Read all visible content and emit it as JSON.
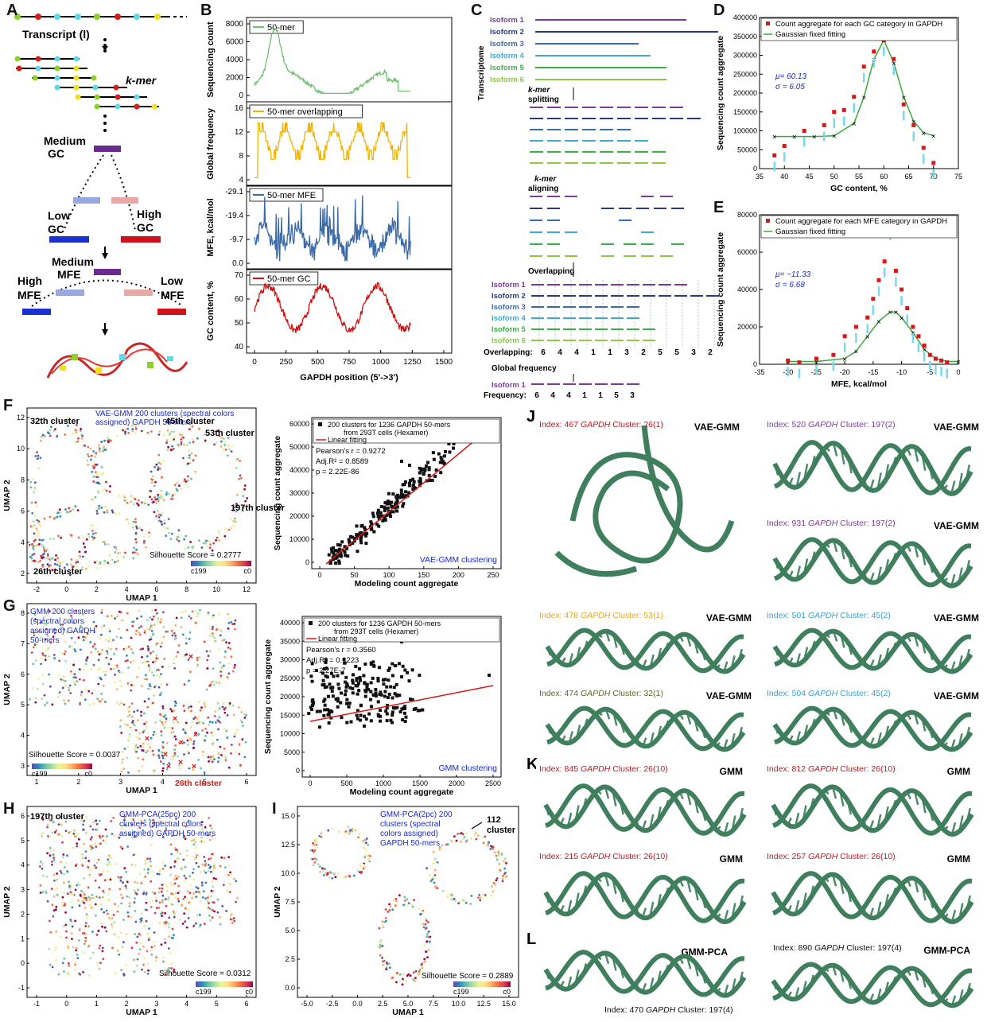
{
  "panels": {
    "A": {
      "letter": "A",
      "transcript": "Transcript (l)",
      "kmer": "k-mer",
      "medium_gc": "Medium GC",
      "low_gc": "Low GC",
      "high_gc": "High GC",
      "medium_mfe": "Medium MFE",
      "high_mfe": "High MFE",
      "low_mfe": "Low MFE"
    },
    "B": {
      "letter": "B",
      "xlabel": "GAPDH position (5'->3')",
      "xticks": [
        "0",
        "250",
        "500",
        "750",
        "1000",
        "1250",
        "1500"
      ],
      "subplots": [
        {
          "legend": "50-mer",
          "ylabel": "Sequencing count",
          "yticks": [
            "0",
            "2000",
            "4000",
            "6000",
            "8000"
          ],
          "color": "#6fbf6f"
        },
        {
          "legend": "50-mer overlapping",
          "ylabel": "Global frequency",
          "yticks": [
            "4",
            "8",
            "12",
            "16"
          ],
          "color": "#f0b400"
        },
        {
          "legend": "50-mer MFE",
          "ylabel": "MFE, kcal/mol",
          "yticks": [
            "0.0",
            "-9.7",
            "-19.4",
            "-29.1"
          ],
          "color": "#3b6aa8"
        },
        {
          "legend": "50-mer GC",
          "ylabel": "GC content, %",
          "yticks": [
            "40",
            "50",
            "60",
            "70"
          ],
          "color": "#d01010"
        }
      ]
    },
    "C": {
      "letter": "C",
      "transcriptome": "Transcriptome",
      "isoforms": [
        "Isoform 1",
        "Isoform 2",
        "Isoform 3",
        "Isoform 4",
        "Isoform 5",
        "Isoform 6"
      ],
      "kmer_splitting": "k-mer splitting",
      "kmer_aligning": "k-mer aligning",
      "overlapping": "Overlapping",
      "global_frequency": "Global frequency",
      "overlapping_label": "Overlapping:",
      "overlapping_values": [
        "6",
        "4",
        "4",
        "1",
        "1",
        "3",
        "2",
        "5",
        "5",
        "3",
        "2",
        "2"
      ],
      "isoform1": "Isoform 1",
      "frequency_label": "Frequency:",
      "frequency_values": [
        "6",
        "4",
        "4",
        "1",
        "1",
        "5",
        "3"
      ]
    },
    "D": {
      "letter": "D",
      "legend1": "Count aggregate for each GC category in GAPDH",
      "legend2": "Gaussian fixed fitting",
      "mu": "μ= 60.13",
      "sigma": "σ = 6.05",
      "xlabel": "GC content, %",
      "ylabel": "Sequencing count aggregate",
      "xticks": [
        "35",
        "40",
        "45",
        "50",
        "55",
        "60",
        "65",
        "70",
        "75"
      ],
      "yticks": [
        "0",
        "50000",
        "100000",
        "150000",
        "200000",
        "250000",
        "300000",
        "350000",
        "400000"
      ]
    },
    "E": {
      "letter": "E",
      "legend1": "Count aggregate for each MFE category in GAPDH",
      "legend2": "Gaussian fixed fitting",
      "mu": "μ= −11.33",
      "sigma": "σ = 6.68",
      "xlabel": "MFE, kcal/mol",
      "ylabel": "Sequencing count aggregate",
      "xticks": [
        "-35",
        "-30",
        "-25",
        "-20",
        "-15",
        "-10",
        "-5",
        "0"
      ],
      "yticks": [
        "0",
        "20000",
        "40000",
        "60000",
        "80000"
      ]
    },
    "F": {
      "letter": "F",
      "title": "VAE-GMM 200 clusters (spectral colors assigned) GAPDH 50-mers",
      "silhouette": "Silhouette Score = 0.2777",
      "xlabel": "UMAP 1",
      "ylabel": "UMAP 2",
      "xticks": [
        "-2",
        "0",
        "2",
        "4",
        "6",
        "8",
        "10",
        "12"
      ],
      "yticks": [
        "2",
        "4",
        "6",
        "8",
        "10",
        "12"
      ],
      "clusters": [
        "32th cluster",
        "45th cluster",
        "53th cluster",
        "197th cluster",
        "26th cluster"
      ],
      "cb_low": "c199",
      "cb_high": "c0",
      "scatter_legend1": "200 clusters for 1236 GAPDH 50-mers",
      "scatter_legend1b": "from 293T cells (Hexamer)",
      "scatter_legend2": "Linear fitting",
      "pearson": "Pearson's r = 0.9272",
      "adjr2": "Adj.R² = 0.8589",
      "pval": "p = 2.22E-86",
      "method": "VAE-GMM clustering",
      "sx_label": "Modeling count aggregate",
      "sy_label": "Sequencing count aggregate",
      "sxticks": [
        "0",
        "50",
        "100",
        "150",
        "200",
        "250"
      ],
      "syticks": [
        "0",
        "10000",
        "20000",
        "30000",
        "40000",
        "50000",
        "60000"
      ]
    },
    "G": {
      "letter": "G",
      "title": "GMM 200 clusters (spectral colors assigned) GAPDH 50-mers",
      "silhouette": "Silhouette Score = 0.0037",
      "xlabel": "UMAP 1",
      "ylabel": "UMAP 2",
      "xticks": [
        "1",
        "2",
        "3",
        "4",
        "5",
        "6"
      ],
      "yticks": [
        "3",
        "4",
        "5",
        "6",
        "7",
        "8"
      ],
      "cluster": "26th cluster",
      "cb_low": "c199",
      "cb_high": "c0",
      "scatter_legend1": "200 clusters for 1236 GAPDH 50-mers",
      "scatter_legend1b": "from 293T cells (Hexamer)",
      "scatter_legend2": "Linear fitting",
      "pearson": "Pearson's r = 0.3560",
      "adjr2": "Adj.R² = 0.1223",
      "pval": "p = 2.27E-7",
      "method": "GMM clustering",
      "sx_label": "Modeling count aggregate",
      "sy_label": "Sequencing count aggregate",
      "sxticks": [
        "0",
        "500",
        "1000",
        "1500",
        "2000",
        "2500"
      ],
      "syticks": [
        "0",
        "5000",
        "10000",
        "15000",
        "20000",
        "25000",
        "30000",
        "35000",
        "40000"
      ]
    },
    "H": {
      "letter": "H",
      "title": "GMM-PCA(25pc) 200 clusters (spectral colors assigned) GAPDH 50-mers",
      "cluster": "197th cluster",
      "silhouette": "Silhouette Score = 0.0312",
      "xlabel": "UMAP 1",
      "ylabel": "UMAP 2",
      "xticks": [
        "-1",
        "0",
        "1",
        "2",
        "3",
        "4",
        "5",
        "6"
      ],
      "yticks": [
        "-1",
        "0",
        "1",
        "2",
        "3",
        "4",
        "5",
        "6"
      ],
      "cb_low": "c199",
      "cb_high": "c0"
    },
    "I": {
      "letter": "I",
      "title": "GMM-PCA(2pc) 200 clusters (spectral colors assigned) GAPDH 50-mers",
      "cluster": "112rd cluster",
      "silhouette": "Silhouette Score = 0.2889",
      "xlabel": "UMAP 1",
      "ylabel": "UMAP 2",
      "xticks": [
        "-5.0",
        "-2.5",
        "0.0",
        "2.5",
        "5.0",
        "7.5",
        "10.0",
        "12.5",
        "15.0"
      ],
      "yticks": [
        "0.0",
        "2.5",
        "5.0",
        "7.5",
        "10.0",
        "12.5",
        "15.0"
      ],
      "cb_low": "c199",
      "cb_high": "c0"
    },
    "J": {
      "letter": "J",
      "structures": [
        {
          "index": "Index: 467",
          "gene": "GAPDH",
          "cluster": "Cluster: 26(1)",
          "method": "VAE-GMM",
          "color": "#c0181e"
        },
        {
          "index": "Index: 520",
          "gene": "GAPDH",
          "cluster": "Cluster: 197(2)",
          "method": "VAE-GMM",
          "color": "#7a3c9a"
        },
        {
          "index": "Index: 931",
          "gene": "GAPDH",
          "cluster": "Cluster: 197(2)",
          "method": "VAE-GMM",
          "color": "#7a3c9a"
        },
        {
          "index": "Index: 478",
          "gene": "GAPDH",
          "cluster": "Cluster: 53(1)",
          "method": "VAE-GMM",
          "color": "#e8a818"
        },
        {
          "index": "Index: 501",
          "gene": "GAPDH",
          "cluster": "Cluster: 45(2)",
          "method": "VAE-GMM",
          "color": "#3a9fd8"
        },
        {
          "index": "Index: 474",
          "gene": "GAPDH",
          "cluster": "Cluster: 32(1)",
          "method": "VAE-GMM",
          "color": "#5a6a2a"
        },
        {
          "index": "Index: 504",
          "gene": "GAPDH",
          "cluster": "Cluster: 45(2)",
          "method": "VAE-GMM",
          "color": "#3a9fd8"
        }
      ]
    },
    "K": {
      "letter": "K",
      "structures": [
        {
          "index": "Index: 845",
          "gene": "GAPDH",
          "cluster": "Cluster: 26(10)",
          "method": "GMM",
          "color": "#c0181e"
        },
        {
          "index": "Index: 812",
          "gene": "GAPDH",
          "cluster": "Cluster: 26(10)",
          "method": "GMM",
          "color": "#c0181e"
        },
        {
          "index": "Index: 215",
          "gene": "GAPDH",
          "cluster": "Cluster: 26(10)",
          "method": "GMM",
          "color": "#c0181e"
        },
        {
          "index": "Index: 257",
          "gene": "GAPDH",
          "cluster": "Cluster: 26(10)",
          "method": "GMM",
          "color": "#c0181e"
        }
      ]
    },
    "L": {
      "letter": "L",
      "structures": [
        {
          "index": "Index: 470",
          "gene": "GAPDH",
          "cluster": "Cluster: 197(4)",
          "method": "GMM-PCA",
          "color": "#111111"
        },
        {
          "index": "Index: 890",
          "gene": "GAPDH",
          "cluster": "Cluster: 197(4)",
          "method": "GMM-PCA",
          "color": "#111111"
        }
      ]
    }
  },
  "chart_data": [
    {
      "panel": "D",
      "type": "scatter",
      "series": [
        {
          "name": "Count aggregate for each GC category in GAPDH",
          "x": [
            38,
            40,
            44,
            48,
            50,
            52,
            54,
            56,
            58,
            60,
            62,
            64,
            66,
            68,
            70
          ],
          "y": [
            35000,
            60000,
            100000,
            115000,
            150000,
            155000,
            190000,
            270000,
            310000,
            340000,
            290000,
            170000,
            115000,
            55000,
            15000
          ]
        },
        {
          "name": "Gaussian fixed fitting",
          "x": [
            38,
            42,
            46,
            50,
            54,
            56,
            58,
            60,
            62,
            64,
            66,
            68,
            70
          ],
          "y": [
            85000,
            85000,
            85000,
            87000,
            120000,
            190000,
            290000,
            340000,
            280000,
            190000,
            125000,
            95000,
            87000
          ]
        }
      ],
      "xlim": [
        35,
        75
      ],
      "ylim": [
        0,
        400000
      ]
    },
    {
      "panel": "E",
      "type": "scatter",
      "series": [
        {
          "name": "Count aggregate for each MFE category in GAPDH",
          "x": [
            -30,
            -28,
            -25,
            -22,
            -20,
            -18,
            -16,
            -15,
            -14,
            -13,
            -12,
            -11,
            -10,
            -9,
            -8,
            -7,
            -6,
            -5,
            -4,
            -3,
            -2
          ],
          "y": [
            2000,
            1000,
            3000,
            5000,
            15000,
            20000,
            25000,
            35000,
            45000,
            55000,
            75000,
            50000,
            40000,
            30000,
            20000,
            15000,
            10000,
            5000,
            3000,
            2000,
            1000
          ]
        },
        {
          "name": "Gaussian fixed fitting",
          "x": [
            -30,
            -25,
            -20,
            -18,
            -16,
            -14,
            -12,
            -11,
            -10,
            -8,
            -6,
            -4,
            -2,
            0
          ],
          "y": [
            1500,
            1500,
            3000,
            7000,
            15000,
            23000,
            28000,
            28000,
            25000,
            17000,
            8000,
            3000,
            1500,
            1500
          ]
        }
      ],
      "xlim": [
        -35,
        0
      ],
      "ylim": [
        0,
        80000
      ]
    }
  ]
}
